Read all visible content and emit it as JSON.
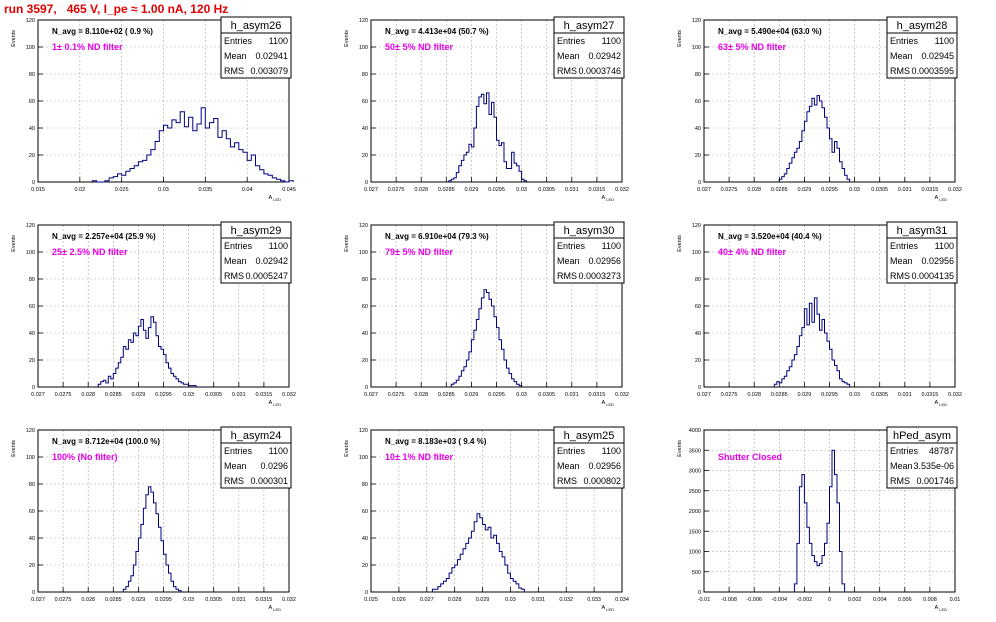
{
  "header": {
    "run_title": "run 3597,   465 V, I_pe ≈ 1.00 nA, 120 Hz"
  },
  "common": {
    "ylabel": "Events",
    "xlabel_main": "A",
    "xlabel_sub": "LED",
    "stats_labels": [
      "Entries",
      "Mean",
      "RMS"
    ],
    "line_color": "#000080",
    "note_color": "#e800e8"
  },
  "chart_data": [
    {
      "type": "histogram",
      "title": "h_asym26",
      "navg": "N_avg = 8.110e+02 ( 0.9 %)",
      "note": "1± 0.1% ND filter",
      "stats": {
        "entries": "1100",
        "mean": "0.02941",
        "rms": "0.003079"
      },
      "xlim": [
        0.015,
        0.045
      ],
      "ylim": [
        0,
        120
      ],
      "xticks": [
        "0.015",
        "0.02",
        "0.025",
        "0.03",
        "0.035",
        "0.04",
        "0.045"
      ],
      "yticks": [
        "0",
        "20",
        "40",
        "60",
        "80",
        "100",
        "120"
      ],
      "bins": {
        "start": 0.0215,
        "width": 0.0005,
        "values": [
          1,
          0,
          0,
          1,
          3,
          4,
          6,
          5,
          8,
          10,
          12,
          15,
          16,
          20,
          24,
          30,
          38,
          42,
          40,
          46,
          44,
          52,
          41,
          48,
          38,
          43,
          55,
          40,
          44,
          47,
          33,
          38,
          32,
          26,
          29,
          24,
          22,
          16,
          20,
          12,
          9,
          6,
          5,
          3,
          2,
          1,
          0,
          1
        ]
      }
    },
    {
      "type": "histogram",
      "title": "h_asym27",
      "navg": "N_avg = 4.413e+04 (50.7 %)",
      "note": "50± 5% ND filter",
      "stats": {
        "entries": "1100",
        "mean": "0.02942",
        "rms": "0.0003746"
      },
      "xlim": [
        0.027,
        0.032
      ],
      "ylim": [
        0,
        120
      ],
      "xticks": [
        "0.027",
        "0.0275",
        "0.028",
        "0.0285",
        "0.029",
        "0.0295",
        "0.03",
        "0.0305",
        "0.031",
        "0.0315",
        "0.032"
      ],
      "yticks": [
        "0",
        "20",
        "40",
        "60",
        "80",
        "100",
        "120"
      ],
      "bins": {
        "start": 0.02855,
        "width": 5e-05,
        "values": [
          1,
          2,
          3,
          7,
          12,
          16,
          20,
          22,
          28,
          26,
          40,
          56,
          63,
          65,
          58,
          66,
          50,
          59,
          48,
          31,
          27,
          29,
          15,
          10,
          10,
          22,
          14,
          12,
          8,
          2,
          1
        ]
      }
    },
    {
      "type": "histogram",
      "title": "h_asym28",
      "navg": "N_avg = 5.490e+04 (63.0 %)",
      "note": "63± 5% ND filter",
      "stats": {
        "entries": "1100",
        "mean": "0.02945",
        "rms": "0.0003595"
      },
      "xlim": [
        0.027,
        0.032
      ],
      "ylim": [
        0,
        120
      ],
      "xticks": [
        "0.027",
        "0.0275",
        "0.028",
        "0.0285",
        "0.029",
        "0.0295",
        "0.03",
        "0.0305",
        "0.031",
        "0.0315",
        "0.032"
      ],
      "yticks": [
        "0",
        "20",
        "40",
        "60",
        "80",
        "100",
        "120"
      ],
      "bins": {
        "start": 0.0285,
        "width": 5e-05,
        "values": [
          2,
          4,
          6,
          10,
          14,
          18,
          22,
          25,
          30,
          38,
          45,
          52,
          56,
          62,
          57,
          64,
          60,
          55,
          48,
          40,
          32,
          22,
          30,
          25,
          15,
          10,
          5,
          2
        ]
      }
    },
    {
      "type": "histogram",
      "title": "h_asym29",
      "navg": "N_avg = 2.257e+04 (25.9 %)",
      "note": "25± 2.5% ND filter",
      "stats": {
        "entries": "1100",
        "mean": "0.02942",
        "rms": "0.0005247"
      },
      "xlim": [
        0.027,
        0.032
      ],
      "ylim": [
        0,
        120
      ],
      "xticks": [
        "0.027",
        "0.0275",
        "0.028",
        "0.0285",
        "0.029",
        "0.0295",
        "0.03",
        "0.0305",
        "0.031",
        "0.0315",
        "0.032"
      ],
      "yticks": [
        "0",
        "20",
        "40",
        "60",
        "80",
        "100",
        "120"
      ],
      "bins": {
        "start": 0.0282,
        "width": 5e-05,
        "values": [
          2,
          4,
          5,
          3,
          8,
          6,
          10,
          14,
          18,
          22,
          30,
          28,
          35,
          33,
          40,
          38,
          45,
          50,
          42,
          36,
          44,
          52,
          48,
          38,
          30,
          28,
          24,
          18,
          14,
          10,
          8,
          6,
          4,
          3,
          2,
          2,
          1,
          1,
          1
        ]
      }
    },
    {
      "type": "histogram",
      "title": "h_asym30",
      "navg": "N_avg = 6.910e+04 (79.3 %)",
      "note": "79± 5% ND filter",
      "stats": {
        "entries": "1100",
        "mean": "0.02956",
        "rms": "0.0003273"
      },
      "xlim": [
        0.027,
        0.032
      ],
      "ylim": [
        0,
        120
      ],
      "xticks": [
        "0.027",
        "0.0275",
        "0.028",
        "0.0285",
        "0.029",
        "0.0295",
        "0.03",
        "0.0305",
        "0.031",
        "0.0315",
        "0.032"
      ],
      "yticks": [
        "0",
        "20",
        "40",
        "60",
        "80",
        "100",
        "120"
      ],
      "bins": {
        "start": 0.0286,
        "width": 5e-05,
        "values": [
          2,
          3,
          5,
          8,
          12,
          15,
          20,
          26,
          35,
          42,
          50,
          58,
          66,
          72,
          70,
          65,
          60,
          52,
          44,
          35,
          28,
          20,
          14,
          10,
          6,
          4,
          2,
          1
        ]
      }
    },
    {
      "type": "histogram",
      "title": "h_asym31",
      "navg": "N_avg = 3.520e+04 (40.4 %)",
      "note": "40± 4% ND filter",
      "stats": {
        "entries": "1100",
        "mean": "0.02956",
        "rms": "0.0004135"
      },
      "xlim": [
        0.027,
        0.032
      ],
      "ylim": [
        0,
        120
      ],
      "xticks": [
        "0.027",
        "0.0275",
        "0.028",
        "0.0285",
        "0.029",
        "0.0295",
        "0.03",
        "0.0305",
        "0.031",
        "0.0315",
        "0.032"
      ],
      "yticks": [
        "0",
        "20",
        "40",
        "60",
        "80",
        "100",
        "120"
      ],
      "bins": {
        "start": 0.0284,
        "width": 5e-05,
        "values": [
          2,
          4,
          3,
          6,
          8,
          12,
          15,
          20,
          24,
          30,
          38,
          44,
          58,
          46,
          62,
          48,
          66,
          54,
          42,
          50,
          40,
          34,
          28,
          20,
          16,
          12,
          6,
          4,
          3,
          2
        ]
      }
    },
    {
      "type": "histogram",
      "title": "h_asym24",
      "navg": "N_avg = 8.712e+04 (100.0 %)",
      "note": "100% (No filter)",
      "stats": {
        "entries": "1100",
        "mean": "0.0296",
        "rms": "0.000301"
      },
      "xlim": [
        0.027,
        0.032
      ],
      "ylim": [
        0,
        120
      ],
      "xticks": [
        "0.027",
        "0.0275",
        "0.028",
        "0.0285",
        "0.029",
        "0.0295",
        "0.03",
        "0.0305",
        "0.031",
        "0.0315",
        "0.032"
      ],
      "yticks": [
        "0",
        "20",
        "40",
        "60",
        "80",
        "100",
        "120"
      ],
      "bins": {
        "start": 0.0287,
        "width": 5e-05,
        "values": [
          2,
          4,
          8,
          12,
          20,
          30,
          40,
          50,
          62,
          72,
          78,
          74,
          66,
          58,
          48,
          38,
          28,
          20,
          14,
          8,
          4,
          2,
          1
        ]
      }
    },
    {
      "type": "histogram",
      "title": "h_asym25",
      "navg": "N_avg = 8.183e+03 ( 9.4 %)",
      "note": "10± 1% ND filter",
      "stats": {
        "entries": "1100",
        "mean": "0.02956",
        "rms": "0.000802"
      },
      "xlim": [
        0.025,
        0.034
      ],
      "ylim": [
        0,
        120
      ],
      "xticks": [
        "0.025",
        "0.026",
        "0.027",
        "0.028",
        "0.029",
        "0.03",
        "0.031",
        "0.032",
        "0.033",
        "0.034"
      ],
      "yticks": [
        "0",
        "20",
        "40",
        "60",
        "80",
        "100",
        "120"
      ],
      "bins": {
        "start": 0.0272,
        "width": 0.0001,
        "values": [
          2,
          2,
          4,
          6,
          8,
          10,
          14,
          18,
          20,
          24,
          28,
          32,
          36,
          40,
          45,
          52,
          58,
          55,
          50,
          46,
          48,
          40,
          42,
          36,
          30,
          26,
          20,
          14,
          10,
          8,
          6,
          3,
          2
        ]
      }
    },
    {
      "type": "histogram",
      "title": "hPed_asym",
      "navg": "",
      "note": "Shutter Closed",
      "stats": {
        "entries": "48787",
        "mean": "3.535e-06",
        "rms": "0.001746"
      },
      "xlim": [
        -0.01,
        0.01
      ],
      "ylim": [
        0,
        4000
      ],
      "xticks": [
        "-0.01",
        "-0.008",
        "-0.006",
        "-0.004",
        "-0.002",
        "0",
        "0.002",
        "0.004",
        "0.006",
        "0.008",
        "0.01"
      ],
      "yticks": [
        "0",
        "500",
        "1000",
        "1500",
        "2000",
        "2500",
        "3000",
        "3500",
        "4000"
      ],
      "bins": {
        "start": -0.0028,
        "width": 0.0002,
        "values": [
          200,
          1200,
          2600,
          2900,
          2200,
          1600,
          1200,
          900,
          750,
          650,
          700,
          900,
          1200,
          1700,
          2600,
          3500,
          2900,
          2200,
          1000,
          200
        ]
      }
    }
  ]
}
